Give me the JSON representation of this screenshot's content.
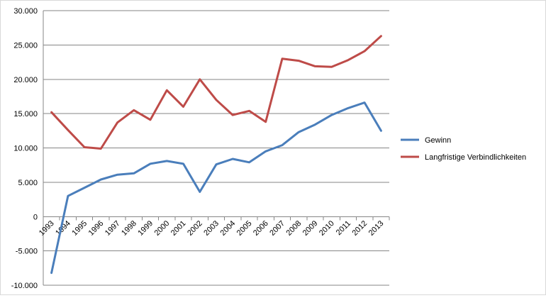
{
  "chart_data": {
    "type": "line",
    "title": "",
    "xlabel": "",
    "ylabel": "",
    "categories": [
      "1993",
      "1994",
      "1995",
      "1996",
      "1997",
      "1998",
      "1999",
      "2000",
      "2001",
      "2002",
      "2003",
      "2004",
      "2005",
      "2006",
      "2007",
      "2008",
      "2009",
      "2010",
      "2011",
      "2012",
      "2013"
    ],
    "ylim": [
      -10000,
      30000
    ],
    "yticks": [
      -10000,
      -5000,
      0,
      5000,
      10000,
      15000,
      20000,
      25000,
      30000
    ],
    "ytick_labels": [
      "-10.000",
      "-5.000",
      "0",
      "5.000",
      "10.000",
      "15.000",
      "20.000",
      "25.000",
      "30.000"
    ],
    "grid": "horizontal",
    "legend_position": "right",
    "series": [
      {
        "name": "Gewinn",
        "color": "#4a7ebb",
        "values": [
          -8200,
          3000,
          4200,
          5400,
          6100,
          6300,
          7700,
          8100,
          7700,
          3600,
          7600,
          8400,
          7900,
          9500,
          10400,
          12300,
          13400,
          14800,
          15800,
          16600,
          12500
        ]
      },
      {
        "name": "Langfristige Verbindlichkeiten",
        "color": "#be4b48",
        "values": [
          15200,
          12600,
          10100,
          9900,
          13700,
          15500,
          14100,
          18400,
          16000,
          20000,
          17000,
          14800,
          15400,
          13800,
          23000,
          22700,
          21900,
          21800,
          22800,
          24100,
          26300
        ]
      }
    ]
  }
}
